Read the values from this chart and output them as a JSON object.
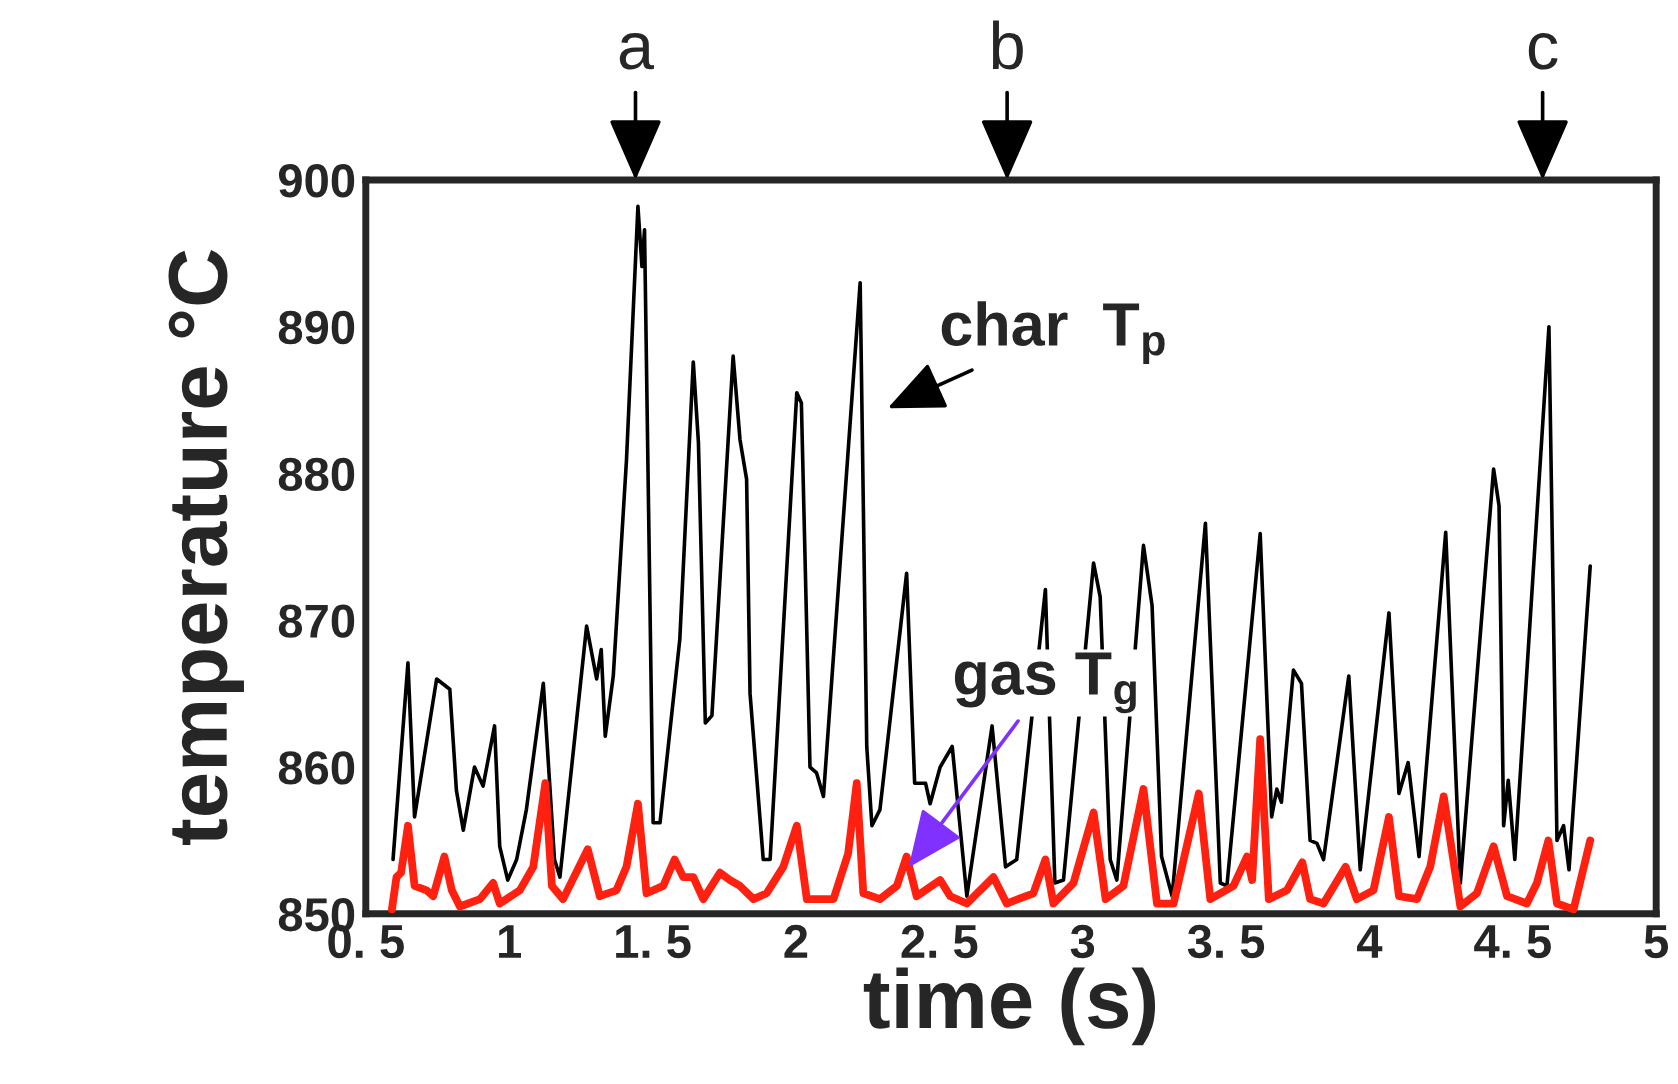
{
  "chart_data": {
    "type": "line",
    "xlabel": "time (s)",
    "ylabel": "temperature °C",
    "xlim": [
      0.5,
      5
    ],
    "ylim": [
      850,
      900
    ],
    "xticks": [
      {
        "value": 0.5,
        "label": "0. 5"
      },
      1,
      {
        "value": 1.5,
        "label": "1. 5"
      },
      2,
      {
        "value": 2.5,
        "label": "2. 5"
      },
      3,
      {
        "value": 3.5,
        "label": "3. 5"
      },
      4,
      {
        "value": 4.5,
        "label": "4. 5"
      },
      5
    ],
    "yticks": [
      850,
      860,
      870,
      880,
      890,
      900
    ],
    "grid": false,
    "legend": false,
    "marker": "none",
    "line_style": "solid",
    "series": [
      {
        "color": "#000000",
        "x": [
          0.595,
          0.647,
          0.67,
          0.747,
          0.793,
          0.816,
          0.84,
          0.879,
          0.909,
          0.949,
          0.967,
          0.995,
          1.026,
          1.06,
          1.119,
          1.158,
          1.177,
          1.27,
          1.305,
          1.321,
          1.335,
          1.363,
          1.409,
          1.449,
          1.463,
          1.472,
          1.502,
          1.526,
          1.595,
          1.642,
          1.66,
          1.684,
          1.707,
          1.781,
          1.805,
          1.828,
          1.84,
          1.886,
          1.91,
          2.003,
          2.019,
          2.049,
          2.072,
          2.096,
          2.224,
          2.247,
          2.265,
          2.293,
          2.386,
          2.414,
          2.452,
          2.468,
          2.503,
          2.545,
          2.596,
          2.684,
          2.731,
          2.77,
          2.87,
          2.903,
          2.933,
          3.038,
          3.061,
          3.096,
          3.119,
          3.212,
          3.242,
          3.275,
          3.312,
          3.428,
          3.48,
          3.503,
          3.619,
          3.659,
          3.677,
          3.693,
          3.735,
          3.763,
          3.793,
          3.817,
          3.84,
          3.928,
          3.968,
          4.068,
          4.103,
          4.135,
          4.173,
          4.266,
          4.317,
          4.433,
          4.452,
          4.468,
          4.484,
          4.507,
          4.626,
          4.654,
          4.677,
          4.696,
          4.77
        ],
        "values": [
          853.7,
          867.1,
          856.6,
          866.0,
          865.3,
          858.4,
          855.7,
          860.0,
          858.7,
          862.8,
          854.6,
          852.3,
          853.7,
          857.1,
          865.7,
          853.7,
          852.5,
          869.6,
          866.0,
          868.0,
          862.1,
          866.2,
          880.9,
          898.2,
          894.1,
          896.6,
          856.2,
          856.2,
          868.7,
          887.6,
          882.1,
          863.0,
          863.5,
          888.0,
          882.3,
          879.6,
          865.0,
          853.7,
          853.7,
          885.5,
          884.8,
          860.0,
          859.6,
          858.0,
          893.0,
          861.4,
          856.0,
          857.1,
          873.2,
          858.9,
          858.9,
          857.5,
          860.0,
          861.4,
          851.2,
          862.8,
          853.2,
          853.7,
          872.1,
          852.1,
          852.3,
          873.9,
          871.6,
          853.7,
          852.3,
          875.1,
          871.0,
          853.9,
          851.2,
          876.6,
          852.1,
          851.9,
          875.9,
          856.6,
          858.5,
          857.6,
          866.6,
          865.7,
          855.0,
          854.8,
          853.7,
          866.2,
          853.0,
          870.5,
          858.2,
          860.3,
          853.9,
          876.0,
          852.1,
          880.3,
          877.8,
          856.0,
          859.1,
          853.7,
          890.0,
          855.0,
          856.0,
          853.0,
          873.7
        ]
      },
      {
        "color": "#ff2010",
        "x": [
          0.591,
          0.607,
          0.623,
          0.647,
          0.67,
          0.712,
          0.735,
          0.774,
          0.8,
          0.828,
          0.898,
          0.944,
          0.967,
          1.037,
          1.084,
          1.126,
          1.149,
          1.188,
          1.274,
          1.316,
          1.374,
          1.409,
          1.449,
          1.479,
          1.537,
          1.577,
          1.607,
          1.642,
          1.677,
          1.735,
          1.77,
          1.805,
          1.852,
          1.898,
          1.956,
          2.003,
          2.038,
          2.131,
          2.182,
          2.212,
          2.235,
          2.293,
          2.352,
          2.386,
          2.421,
          2.503,
          2.538,
          2.596,
          2.689,
          2.735,
          2.828,
          2.87,
          2.898,
          2.968,
          3.038,
          3.08,
          3.142,
          3.212,
          3.259,
          3.317,
          3.405,
          3.445,
          3.526,
          3.573,
          3.591,
          3.619,
          3.649,
          3.712,
          3.766,
          3.793,
          3.84,
          3.917,
          3.956,
          4.014,
          4.068,
          4.103,
          4.166,
          4.212,
          4.259,
          4.317,
          4.375,
          4.433,
          4.48,
          4.549,
          4.584,
          4.624,
          4.654,
          4.712,
          4.77
        ],
        "values": [
          850.3,
          852.5,
          852.8,
          856.0,
          851.9,
          851.6,
          851.2,
          853.9,
          851.6,
          850.5,
          851.0,
          852.1,
          850.7,
          851.6,
          853.2,
          858.9,
          851.9,
          851.0,
          854.4,
          851.2,
          851.6,
          853.2,
          857.5,
          851.4,
          851.9,
          853.7,
          852.5,
          852.5,
          851.0,
          852.8,
          852.3,
          851.9,
          851.0,
          851.4,
          853.2,
          856.0,
          851.0,
          851.0,
          854.1,
          858.9,
          851.4,
          851.0,
          851.9,
          853.9,
          851.2,
          852.3,
          851.2,
          850.7,
          852.5,
          850.7,
          851.4,
          853.7,
          850.7,
          852.1,
          856.9,
          851.0,
          851.9,
          858.5,
          850.7,
          850.7,
          858.2,
          851.0,
          851.9,
          853.9,
          852.3,
          861.9,
          851.0,
          851.6,
          853.5,
          851.0,
          850.7,
          853.2,
          851.0,
          851.6,
          856.6,
          851.2,
          851.0,
          853.2,
          858.0,
          850.5,
          851.4,
          854.6,
          851.2,
          850.7,
          852.1,
          855.0,
          850.7,
          850.3,
          855.0
        ]
      }
    ],
    "annotations": [
      "a",
      "b",
      "c",
      {
        "text": "char  T$_{p}$",
        "x": 2.258,
        "y": 883.9
      },
      {
        "text": "gas T$_{g}$",
        "x": 2.352,
        "y": 852.1
      }
    ]
  }
}
